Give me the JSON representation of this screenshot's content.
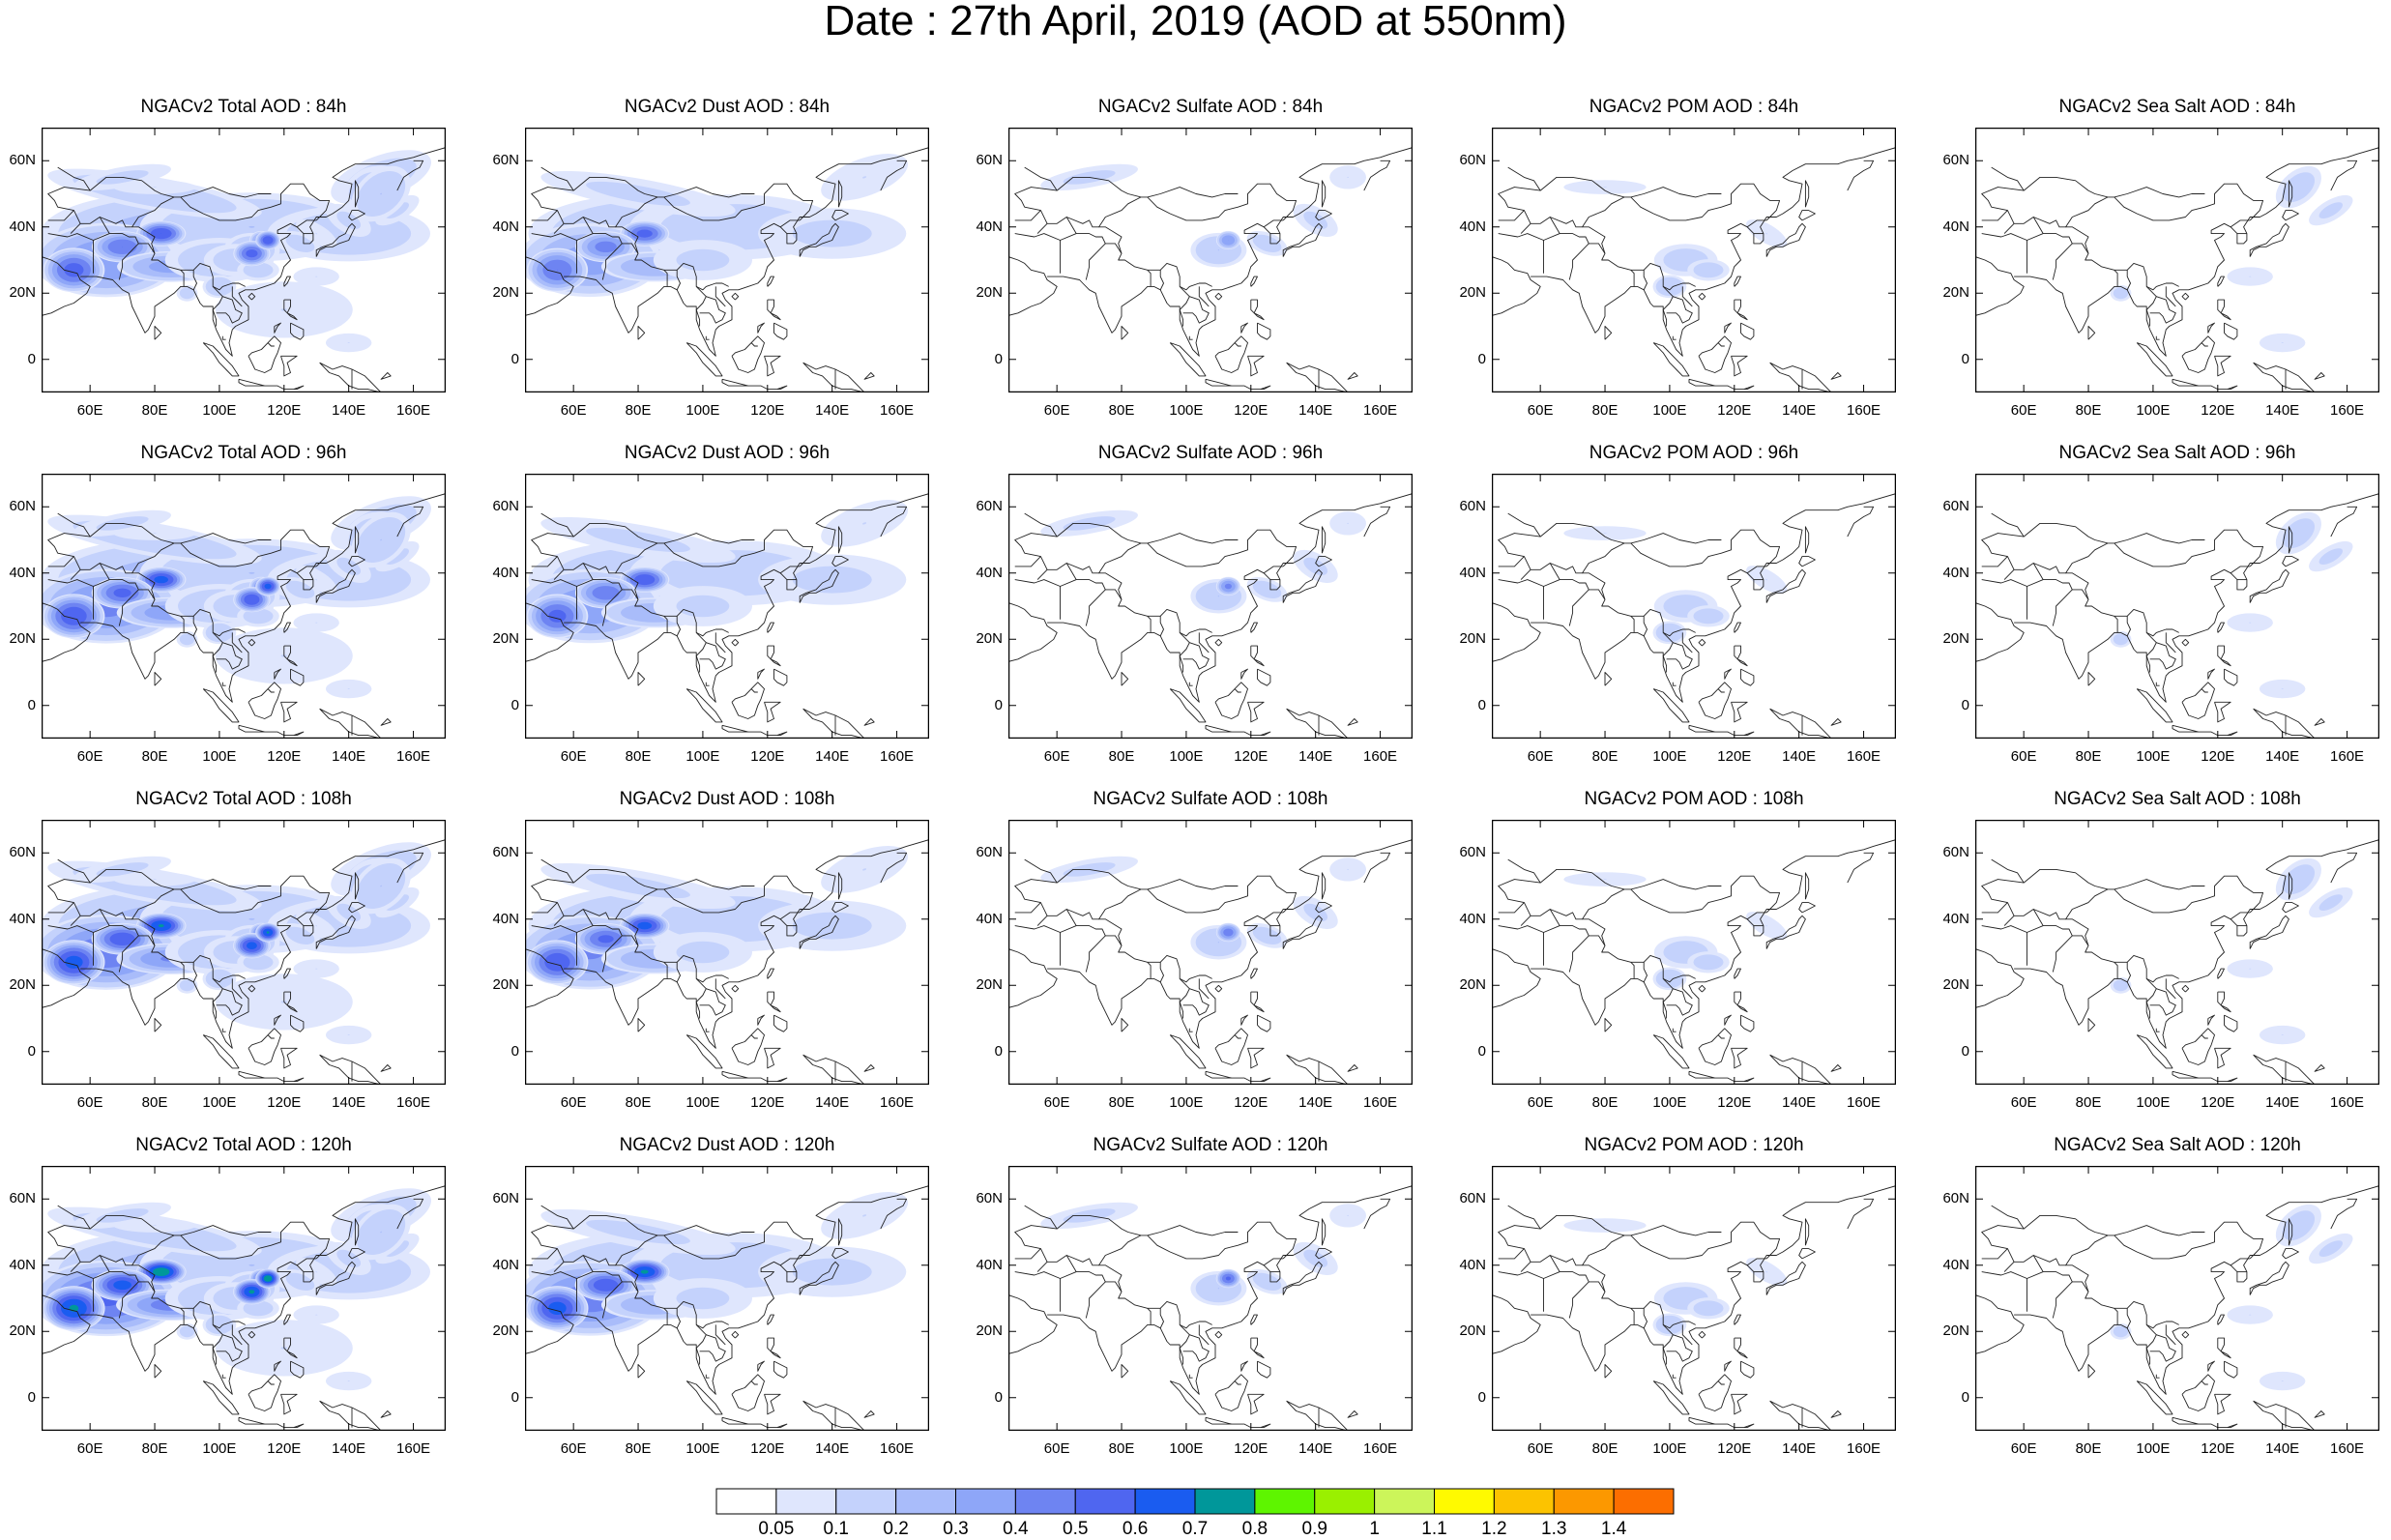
{
  "title": "Date : 27th April, 2019 (AOD at 550nm)",
  "lat_labels": [
    "60N",
    "40N",
    "20N",
    "0"
  ],
  "lon_labels": [
    "60E",
    "80E",
    "100E",
    "120E",
    "140E",
    "160E"
  ],
  "rows": [
    {
      "lead": "84h",
      "panels": [
        {
          "species": "total",
          "title": "NGACv2 Total AOD : 84h"
        },
        {
          "species": "dust",
          "title": "NGACv2 Dust AOD : 84h"
        },
        {
          "species": "sulfate",
          "title": "NGACv2 Sulfate AOD : 84h"
        },
        {
          "species": "pom",
          "title": "NGACv2 POM AOD : 84h"
        },
        {
          "species": "seasalt",
          "title": "NGACv2 Sea Salt AOD : 84h"
        }
      ]
    },
    {
      "lead": "96h",
      "panels": [
        {
          "species": "total",
          "title": "NGACv2 Total AOD : 96h"
        },
        {
          "species": "dust",
          "title": "NGACv2 Dust AOD : 96h"
        },
        {
          "species": "sulfate",
          "title": "NGACv2 Sulfate AOD : 96h"
        },
        {
          "species": "pom",
          "title": "NGACv2 POM AOD : 96h"
        },
        {
          "species": "seasalt",
          "title": "NGACv2 Sea Salt AOD : 96h"
        }
      ]
    },
    {
      "lead": "108h",
      "panels": [
        {
          "species": "total",
          "title": "NGACv2 Total AOD : 108h"
        },
        {
          "species": "dust",
          "title": "NGACv2 Dust AOD : 108h"
        },
        {
          "species": "sulfate",
          "title": "NGACv2 Sulfate AOD : 108h"
        },
        {
          "species": "pom",
          "title": "NGACv2 POM AOD : 108h"
        },
        {
          "species": "seasalt",
          "title": "NGACv2 Sea Salt AOD : 108h"
        }
      ]
    },
    {
      "lead": "120h",
      "panels": [
        {
          "species": "total",
          "title": "NGACv2 Total AOD : 120h"
        },
        {
          "species": "dust",
          "title": "NGACv2 Dust AOD : 120h"
        },
        {
          "species": "sulfate",
          "title": "NGACv2 Sulfate AOD : 120h"
        },
        {
          "species": "pom",
          "title": "NGACv2 POM AOD : 120h"
        },
        {
          "species": "seasalt",
          "title": "NGACv2 Sea Salt  AOD : 120h"
        }
      ]
    }
  ],
  "colorbar": {
    "labels": [
      "0.05",
      "0.1",
      "0.2",
      "0.3",
      "0.4",
      "0.5",
      "0.6",
      "0.7",
      "0.8",
      "0.9",
      "1",
      "1.1",
      "1.2",
      "1.3",
      "1.4"
    ],
    "colors": [
      "#ffffff",
      "#dfe6fd",
      "#c4d2fc",
      "#a9bcfa",
      "#8ea6f8",
      "#6e84f2",
      "#4f66f0",
      "#1a5cf0",
      "#00979a",
      "#5ef500",
      "#9af000",
      "#ccf55a",
      "#fffa00",
      "#fcc300",
      "#fc9800",
      "#fc6e00",
      "#f52800"
    ]
  }
}
